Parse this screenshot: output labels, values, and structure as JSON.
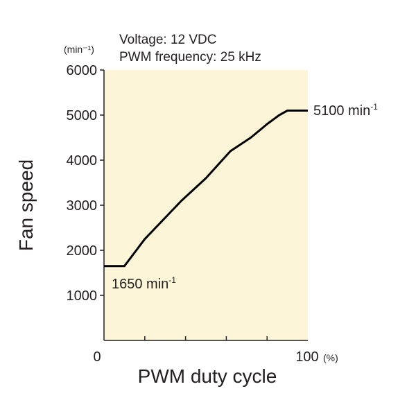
{
  "chart_data": {
    "type": "line",
    "notes": [
      "Voltage: 12 VDC",
      "PWM frequency: 25 kHz"
    ],
    "y_unit_label": "(min⁻¹)",
    "x_unit_label": "(%)",
    "xlabel": "PWM duty cycle",
    "ylabel": "Fan speed",
    "xlim": [
      0,
      100
    ],
    "ylim": [
      0,
      6000
    ],
    "x_tick_labels": [
      "0",
      "100"
    ],
    "x_minor_ticks": [
      20,
      40,
      60,
      80
    ],
    "y_ticks": [
      1000,
      2000,
      3000,
      4000,
      5000,
      6000
    ],
    "y_tick_labels": [
      "1000",
      "2000",
      "3000",
      "4000",
      "5000",
      "6000"
    ],
    "series": [
      {
        "x": [
          0,
          10,
          20,
          38,
          50,
          62,
          72,
          80,
          86,
          90,
          100
        ],
        "y": [
          1650,
          1650,
          2250,
          3100,
          3600,
          4200,
          4500,
          4800,
          5000,
          5100,
          5100
        ]
      }
    ],
    "annotations": {
      "min": {
        "value": "1650 min",
        "sup": "-1"
      },
      "max": {
        "value": "5100 min",
        "sup": "-1"
      }
    },
    "plot_background": "#fdf5d8",
    "line_color": "#000000"
  }
}
